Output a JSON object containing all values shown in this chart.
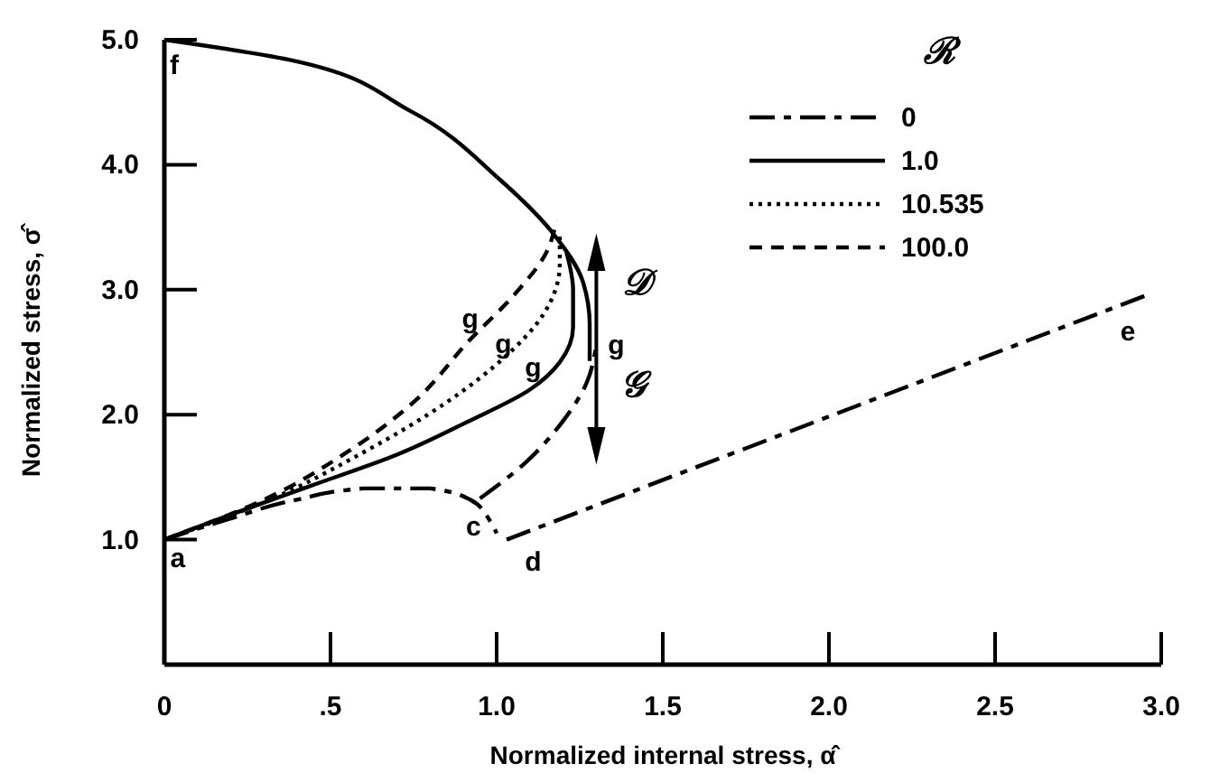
{
  "chart_data": {
    "type": "line",
    "xlabel": "Normalized internal stress, α̂",
    "ylabel": "Normalized stress, σ̂",
    "legend_title": "ℛ",
    "legend": "top right",
    "xlim": [
      0,
      3
    ],
    "ylim": [
      0,
      5
    ],
    "xticks": [
      0,
      {
        "value": 0.5,
        "label": ".5"
      },
      {
        "value": 1,
        "label": "1.0"
      },
      1.5,
      {
        "value": 2,
        "label": "2.0"
      },
      2.5,
      {
        "value": 3,
        "label": "3.0"
      }
    ],
    "yticks": [
      {
        "value": 1,
        "label": "1.0"
      },
      {
        "value": 2,
        "label": "2.0"
      },
      {
        "value": 3,
        "label": "3.0"
      },
      {
        "value": 4,
        "label": "4.0"
      },
      {
        "value": 5,
        "label": "5.0"
      }
    ],
    "series": [
      {
        "name": "0",
        "color": "#000000",
        "line_style": "dashdot",
        "x": [
          0.95,
          1.08,
          1.2,
          1.27,
          1.3
        ],
        "values": [
          1.33,
          1.6,
          1.95,
          2.25,
          2.55
        ]
      },
      {
        "color": "#000000",
        "line_style": "dashdot",
        "x": [
          0,
          0.2,
          0.4,
          0.6,
          0.8,
          0.92,
          0.98,
          1.0
        ],
        "values": [
          1.0,
          1.17,
          1.32,
          1.41,
          1.41,
          1.32,
          1.15,
          1.05
        ]
      },
      {
        "color": "#000000",
        "line_style": "dashdot",
        "x": [
          1.03,
          2.95
        ],
        "values": [
          1.0,
          2.95
        ]
      },
      {
        "name": "1.0",
        "color": "#000000",
        "line_style": "solid",
        "x": [
          0,
          0.2,
          0.44,
          0.7,
          0.91,
          1.1,
          1.19,
          1.23,
          1.23,
          1.21
        ],
        "values": [
          1.0,
          1.2,
          1.43,
          1.68,
          1.94,
          2.2,
          2.42,
          2.7,
          3.0,
          3.3
        ]
      },
      {
        "name": "10.535",
        "color": "#000000",
        "line_style": "dotted",
        "x": [
          0,
          0.3,
          0.6,
          0.85,
          1.02,
          1.14,
          1.19,
          1.19
        ],
        "values": [
          1.0,
          1.3,
          1.7,
          2.1,
          2.45,
          2.8,
          3.2,
          3.45
        ]
      },
      {
        "name": "100.0",
        "color": "#000000",
        "line_style": "dashed",
        "x": [
          0,
          0.3,
          0.55,
          0.75,
          0.92,
          1.05,
          1.15,
          1.18
        ],
        "values": [
          1.0,
          1.32,
          1.7,
          2.1,
          2.6,
          2.95,
          3.3,
          3.55
        ]
      },
      {
        "color": "#000000",
        "line_style": "solid",
        "x": [
          0,
          0.375,
          0.74,
          1.01,
          1.17,
          1.26,
          1.28,
          1.28
        ],
        "values": [
          5.0,
          4.84,
          4.43,
          3.88,
          3.45,
          3.06,
          2.72,
          2.43
        ]
      }
    ],
    "annotations": [
      "a",
      "c",
      "d",
      "e",
      "f",
      "g",
      "g",
      "g",
      "g",
      "𝒟",
      "𝒢"
    ]
  }
}
